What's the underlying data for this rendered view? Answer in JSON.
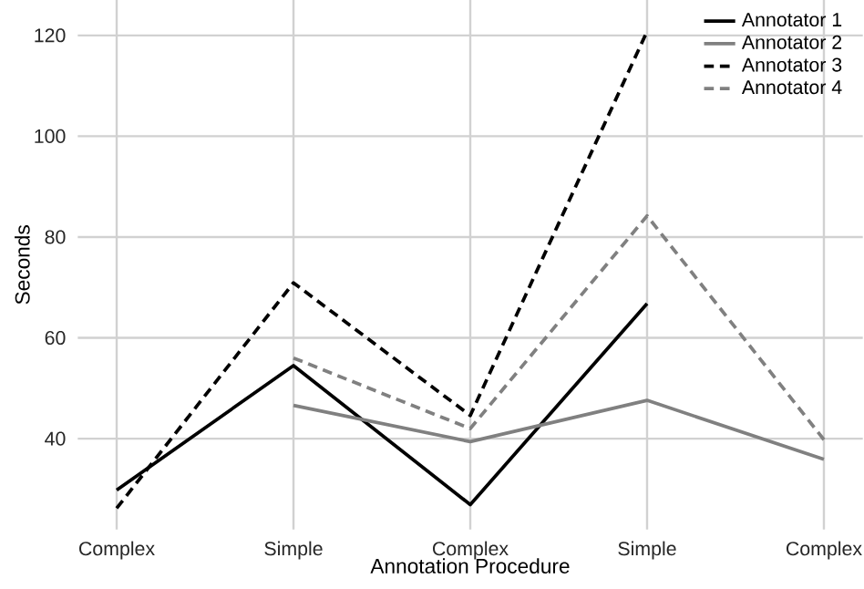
{
  "chart_data": {
    "type": "line",
    "xlabel": "Annotation Procedure",
    "ylabel": "Seconds",
    "categories": [
      "Complex",
      "Simple",
      "Complex",
      "Simple",
      "Complex"
    ],
    "series": [
      {
        "name": "Annotator 1",
        "color": "#000000",
        "line_style": "solid",
        "values": [
          29.8,
          54.5,
          26.9,
          66.8,
          null
        ]
      },
      {
        "name": "Annotator 2",
        "color": "#808080",
        "line_style": "solid",
        "values": [
          null,
          46.6,
          39.4,
          47.6,
          35.9
        ]
      },
      {
        "name": "Annotator 3",
        "color": "#000000",
        "line_style": "dashed",
        "values": [
          26.2,
          70.9,
          44.6,
          120.8,
          null
        ]
      },
      {
        "name": "Annotator 4",
        "color": "#808080",
        "line_style": "dashed",
        "values": [
          null,
          56.0,
          42.0,
          84.2,
          39.8
        ]
      }
    ],
    "ylim": [
      22,
      127
    ],
    "yticks": [
      40,
      60,
      80,
      100,
      120
    ],
    "grid": true,
    "legend": "top right",
    "marker": "none"
  }
}
